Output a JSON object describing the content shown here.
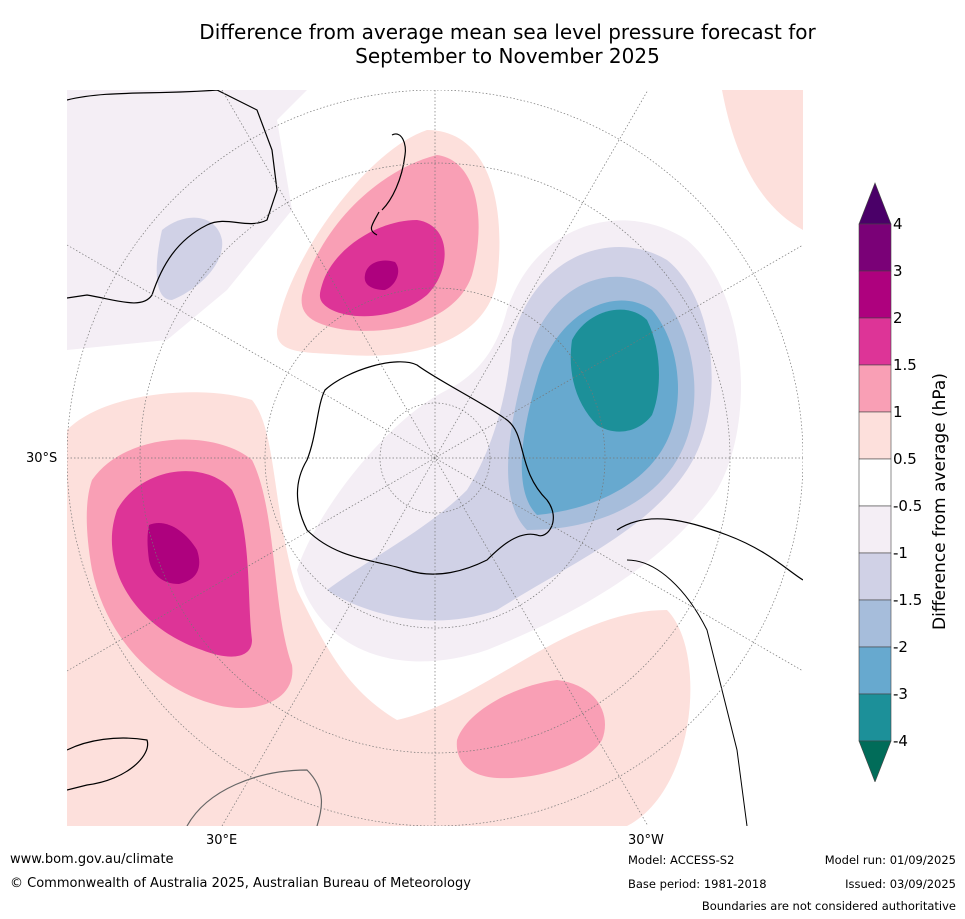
{
  "title_line1": "Difference from average mean sea level pressure forecast for",
  "title_line2": "September to November 2025",
  "map_labels": {
    "lat_left": "30°S",
    "lon_bottom_left": "30°E",
    "lon_bottom_right": "30°W"
  },
  "colorbar": {
    "label": "Difference from average (hPa)",
    "ticks": [
      "4",
      "3",
      "2",
      "1.5",
      "1",
      "0.5",
      "-0.5",
      "-1",
      "-1.5",
      "-2",
      "-3",
      "-4"
    ],
    "colors": {
      "over": "#4a0068",
      "b3_4": "#7a0177",
      "b2_3": "#ae017e",
      "b15_2": "#dd3497",
      "b1_15": "#f99fb5",
      "b05_1": "#fde0dc",
      "neutral": "#ffffff",
      "n05_1": "#f4eef5",
      "n1_15": "#d0d1e6",
      "n15_2": "#a6bddb",
      "n2_3": "#67a9cf",
      "n3_4": "#1c9099",
      "under": "#016c59"
    }
  },
  "footer": {
    "url": "www.bom.gov.au/climate",
    "copyright": "© Commonwealth of Australia 2025, Australian Bureau of Meteorology",
    "model": "Model: ACCESS-S2",
    "base_period": "Base period: 1981-2018",
    "model_run": "Model run: 01/09/2025",
    "issued": "Issued: 03/09/2025",
    "disclaimer": "Boundaries are not considered authoritative"
  }
}
